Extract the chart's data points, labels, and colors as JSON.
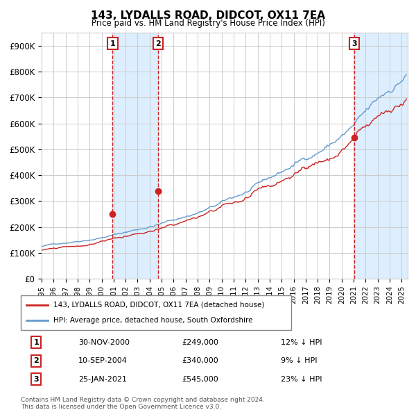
{
  "title": "143, LYDALLS ROAD, DIDCOT, OX11 7EA",
  "subtitle": "Price paid vs. HM Land Registry's House Price Index (HPI)",
  "hpi_label": "HPI: Average price, detached house, South Oxfordshire",
  "property_label": "143, LYDALLS ROAD, DIDCOT, OX11 7EA (detached house)",
  "footnote1": "Contains HM Land Registry data © Crown copyright and database right 2024.",
  "footnote2": "This data is licensed under the Open Government Licence v3.0.",
  "sales": [
    {
      "num": 1,
      "date_str": "30-NOV-2000",
      "date_x": 2000.92,
      "price": 249000,
      "pct": "12% ↓ HPI"
    },
    {
      "num": 2,
      "date_str": "10-SEP-2004",
      "date_x": 2004.69,
      "price": 340000,
      "pct": "9% ↓ HPI"
    },
    {
      "num": 3,
      "date_str": "25-JAN-2021",
      "date_x": 2021.07,
      "price": 545000,
      "pct": "23% ↓ HPI"
    }
  ],
  "ylim": [
    0,
    950000
  ],
  "xlim": [
    1995.0,
    2025.5
  ],
  "yticks": [
    0,
    100000,
    200000,
    300000,
    400000,
    500000,
    600000,
    700000,
    800000,
    900000
  ],
  "ytick_labels": [
    "£0",
    "£100K",
    "£200K",
    "£300K",
    "£400K",
    "£500K",
    "£600K",
    "£700K",
    "£800K",
    "£900K"
  ],
  "xticks": [
    1995,
    1996,
    1997,
    1998,
    1999,
    2000,
    2001,
    2002,
    2003,
    2004,
    2005,
    2006,
    2007,
    2008,
    2009,
    2010,
    2011,
    2012,
    2013,
    2014,
    2015,
    2016,
    2017,
    2018,
    2019,
    2020,
    2021,
    2022,
    2023,
    2024,
    2025
  ],
  "hpi_color": "#6699cc",
  "property_color": "#cc2222",
  "sale_dot_color": "#cc2222",
  "vline_color": "#cc2222",
  "shade_color": "#ddeeff",
  "grid_color": "#cccccc",
  "bg_color": "#ffffff",
  "sale_box_color": "#cc2222",
  "hpi_start_year": 1995.0,
  "hpi_base_value": 125000,
  "property_base_value": 112000
}
